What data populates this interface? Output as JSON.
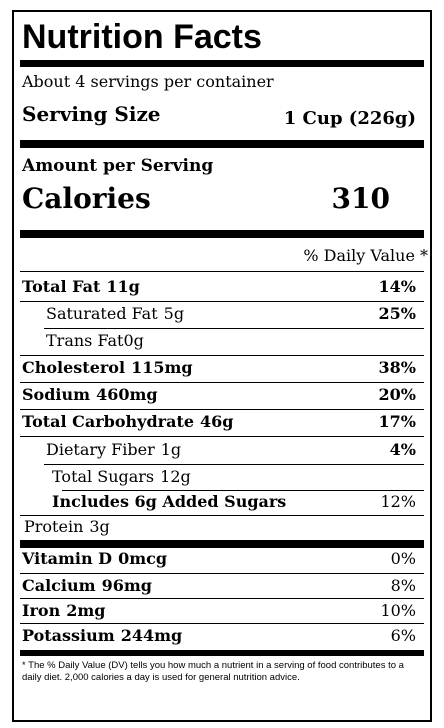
{
  "title": "Nutrition Facts",
  "servings": "About 4 servings per container",
  "serving_size": {
    "label": "Serving Size",
    "value": "1 Cup (226g)"
  },
  "amount_per_serving": "Amount per Serving",
  "calories": {
    "label": "Calories",
    "value": "310"
  },
  "daily_value_header": "% Daily Value *",
  "nutrients": [
    {
      "label": "Total Fat",
      "amount": "11g",
      "dv": "14%"
    },
    {
      "label": "Saturated Fat",
      "amount": "5g",
      "dv": "25%"
    },
    {
      "label": "Trans Fat",
      "amount": "0g"
    },
    {
      "label": "Cholesterol",
      "amount": "115mg",
      "dv": "38%"
    },
    {
      "label": "Sodium",
      "amount": "460mg",
      "dv": "20%"
    },
    {
      "label": "Total Carbohydrate",
      "amount": "46g",
      "dv": "17%"
    },
    {
      "label": "Dietary Fiber",
      "amount": "1g",
      "dv": "4%"
    },
    {
      "label": "Total Sugars",
      "amount": "12g"
    },
    {
      "label": "Includes 6g Added Sugars",
      "dv": "12%"
    },
    {
      "label": "Protein",
      "amount": "3g"
    }
  ],
  "vitamins": [
    {
      "label": "Vitamin D",
      "amount": "0mcg",
      "dv": "0%"
    },
    {
      "label": "Calcium",
      "amount": "96mg",
      "dv": "8%"
    },
    {
      "label": "Iron",
      "amount": "2mg",
      "dv": "10%"
    },
    {
      "label": "Potassium",
      "amount": "244mg",
      "dv": "6%"
    }
  ],
  "footnote": "* The % Daily Value (DV) tells you how much a nutrient in a serving of food contributes to a daily diet. 2,000 calories a day is used for general nutrition advice."
}
